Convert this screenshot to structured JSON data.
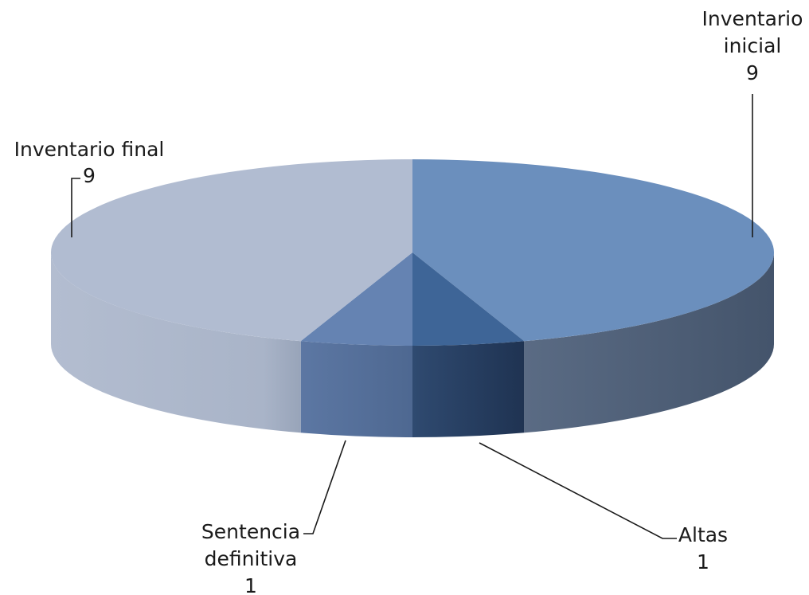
{
  "chart_data": {
    "type": "pie",
    "title": "",
    "categories": [
      "Inventario inicial",
      "Altas",
      "Sentencia definitiva",
      "Inventario final"
    ],
    "values": [
      9,
      1,
      1,
      9
    ],
    "labels": [
      {
        "name": "Inventario inicial",
        "value": "9"
      },
      {
        "name": "Altas",
        "value": "1"
      },
      {
        "name": "Sentencia definitiva",
        "value": "1"
      },
      {
        "name": "Inventario final",
        "value": "9"
      }
    ],
    "colors": [
      "#6b8fbd",
      "#3e6597",
      "#6583b2",
      "#b1bcd1"
    ],
    "side_colors": [
      "#4b5b72",
      "#253a59",
      "#57709a",
      "#a6b2c7"
    ],
    "style": "3d",
    "legend": "none"
  }
}
